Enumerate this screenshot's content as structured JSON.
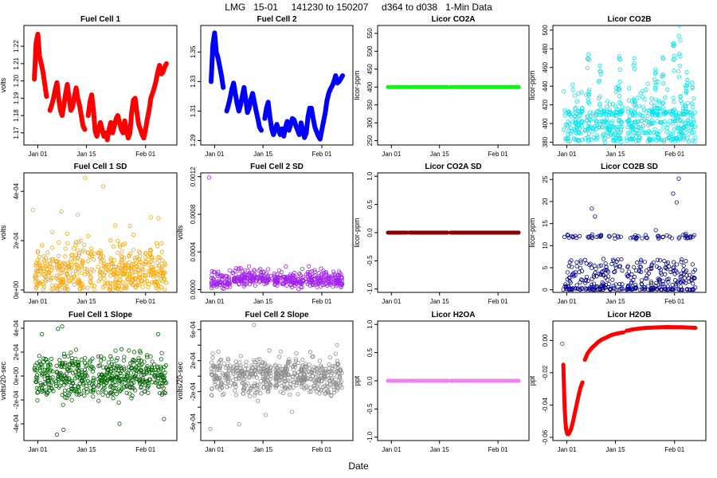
{
  "figure": {
    "title": "LMG   15-01     141230 to 150207     d364 to d038   1-Min Data",
    "xlabel": "Date"
  },
  "chart_data": [
    {
      "type": "line",
      "title": "Fuel Cell 1",
      "ylabel": "volts",
      "color": "#ff0000",
      "ylim": [
        1.163,
        1.232
      ],
      "yticks": [
        1.17,
        1.18,
        1.19,
        1.2,
        1.21,
        1.22
      ],
      "ytick_labels": [
        "1.17",
        "1.18",
        "1.19",
        "1.20",
        "1.21",
        "1.22"
      ],
      "xticks": [
        1,
        15,
        32
      ],
      "xtick_labels": [
        "Jan 01",
        "Jan 15",
        "Feb 01"
      ],
      "xlim": [
        -3,
        41
      ],
      "x": [
        0,
        0.5,
        1,
        1.5,
        2,
        2.5,
        3,
        3.5,
        4,
        4.5,
        5,
        5.5,
        6,
        6.5,
        7,
        7.5,
        8,
        8.5,
        9,
        9.5,
        10,
        10.5,
        11,
        11.5,
        12,
        12.5,
        13,
        13.5,
        14,
        14.5,
        15,
        15.5,
        16,
        16.5,
        17,
        17.5,
        18,
        18.5,
        19,
        19.5,
        20,
        20.5,
        21,
        21.5,
        22,
        22.5,
        23,
        23.5,
        24,
        24.5,
        25,
        25.5,
        26,
        26.5,
        27,
        27.5,
        28,
        28.5,
        29,
        29.5,
        30,
        30.5,
        31,
        31.5,
        32,
        32.5,
        33,
        33.5,
        34,
        34.5,
        35,
        35.5,
        36,
        36.5,
        37,
        37.5,
        38
      ],
      "y": [
        1.201,
        1.222,
        1.227,
        1.214,
        1.21,
        1.205,
        1.198,
        1.191,
        null,
        1.183,
        1.186,
        1.19,
        1.195,
        1.199,
        1.19,
        1.183,
        1.18,
        1.186,
        1.193,
        1.198,
        1.19,
        1.183,
        1.185,
        1.191,
        1.196,
        1.19,
        1.186,
        1.18,
        1.174,
        1.172,
        null,
        1.18,
        1.188,
        1.192,
        1.183,
        1.171,
        1.168,
        1.172,
        1.176,
        1.172,
        1.168,
        1.17,
        1.166,
        1.172,
        1.176,
        1.17,
        1.174,
        1.178,
        1.18,
        1.176,
        1.172,
        1.17,
        1.177,
        1.172,
        1.167,
        1.17,
        1.182,
        1.189,
        1.19,
        1.182,
        1.175,
        1.172,
        1.169,
        1.167,
        1.172,
        1.178,
        1.183,
        1.19,
        1.193,
        1.196,
        1.2,
        1.205,
        1.209,
        1.204,
        1.205,
        1.208,
        1.21
      ]
    },
    {
      "type": "line",
      "title": "Fuel Cell 2",
      "ylabel": "",
      "color": "#0000ff",
      "ylim": [
        1.287,
        1.368
      ],
      "yticks": [
        1.29,
        1.31,
        1.33,
        1.35
      ],
      "ytick_labels": [
        "1.29",
        "1.31",
        "1.33",
        "1.35"
      ],
      "xticks": [
        1,
        15,
        32
      ],
      "xtick_labels": [
        "Jan 01",
        "Jan 15",
        "Feb 01"
      ],
      "xlim": [
        -3,
        41
      ],
      "x": [
        0,
        0.5,
        1,
        1.5,
        2,
        2.5,
        3,
        3.5,
        4,
        4.5,
        5,
        5.5,
        6,
        6.5,
        7,
        7.5,
        8,
        8.5,
        9,
        9.5,
        10,
        10.5,
        11,
        11.5,
        12,
        12.5,
        13,
        13.5,
        14,
        14.5,
        15,
        15.5,
        16,
        16.5,
        17,
        17.5,
        18,
        18.5,
        19,
        19.5,
        20,
        20.5,
        21,
        21.5,
        22,
        22.5,
        23,
        23.5,
        24,
        24.5,
        25,
        25.5,
        26,
        26.5,
        27,
        27.5,
        28,
        28.5,
        29,
        29.5,
        30,
        30.5,
        31,
        31.5,
        32,
        32.5,
        33,
        33.5,
        34,
        34.5,
        35,
        35.5,
        36,
        36.5,
        37,
        37.5,
        38
      ],
      "y": [
        1.33,
        1.355,
        1.363,
        1.35,
        1.346,
        1.34,
        1.334,
        1.326,
        null,
        1.31,
        1.314,
        1.319,
        1.325,
        1.329,
        1.322,
        1.315,
        1.31,
        1.314,
        1.32,
        1.326,
        1.318,
        1.309,
        1.312,
        1.318,
        1.322,
        1.316,
        1.31,
        1.305,
        1.299,
        1.297,
        null,
        1.305,
        1.312,
        1.316,
        1.306,
        1.298,
        1.294,
        1.297,
        1.301,
        1.297,
        1.294,
        1.298,
        1.293,
        1.299,
        1.303,
        1.297,
        1.301,
        1.305,
        1.304,
        1.3,
        1.297,
        1.294,
        1.302,
        1.297,
        1.292,
        1.295,
        1.306,
        1.312,
        1.312,
        1.305,
        1.299,
        1.296,
        1.293,
        1.291,
        1.297,
        1.303,
        1.309,
        1.317,
        1.322,
        1.325,
        1.327,
        1.33,
        1.334,
        1.329,
        1.33,
        1.332,
        1.334
      ]
    },
    {
      "type": "line",
      "title": "Licor CO2A",
      "ylabel": "licor-ppm",
      "color": "#00ff00",
      "ylim": [
        238,
        572
      ],
      "yticks": [
        250,
        300,
        350,
        400,
        450,
        500,
        550
      ],
      "ytick_labels": [
        "250",
        "300",
        "350",
        "400",
        "450",
        "500",
        "550"
      ],
      "xticks": [
        1,
        15,
        32
      ],
      "xtick_labels": [
        "Jan 01",
        "Jan 15",
        "Feb 01"
      ],
      "xlim": [
        -3,
        41
      ],
      "segments": [
        [
          0,
          5.5
        ],
        [
          6.2,
          17.3
        ],
        [
          18.2,
          38
        ]
      ],
      "value": 400
    },
    {
      "type": "scatter",
      "title": "Licor CO2B",
      "ylabel": "licor-ppm",
      "color": "#00e5ee",
      "ylim": [
        377,
        505
      ],
      "yticks": [
        380,
        400,
        420,
        440,
        460,
        480,
        500
      ],
      "ytick_labels": [
        "380",
        "400",
        "420",
        "440",
        "460",
        "480",
        "500"
      ],
      "xticks": [
        1,
        15,
        32
      ],
      "xtick_labels": [
        "Jan 01",
        "Jan 15",
        "Feb 01"
      ],
      "xlim": [
        -3,
        41
      ],
      "segments": [
        [
          0,
          5.5
        ],
        [
          6.2,
          17.3
        ],
        [
          18.2,
          38
        ]
      ],
      "bands": [
        383,
        390,
        396,
        402,
        410
      ],
      "spikes": [
        [
          7.2,
          474
        ],
        [
          10.5,
          462
        ],
        [
          16.1,
          472
        ],
        [
          20.4,
          470
        ],
        [
          31.8,
          486
        ],
        [
          33.4,
          505
        ],
        [
          28.6,
          471
        ],
        [
          26.5,
          458
        ],
        [
          35.5,
          455
        ]
      ]
    },
    {
      "type": "scatter",
      "title": "Fuel Cell 1 SD",
      "ylabel": "volts",
      "color": "#ffa500",
      "ylim": [
        -1e-05,
        0.000475
      ],
      "yticks": [
        0,
        0.0002,
        0.0004
      ],
      "ytick_labels": [
        "0e+00",
        "2e-04",
        "4e-04"
      ],
      "xticks": [
        1,
        15,
        32
      ],
      "xtick_labels": [
        "Jan 01",
        "Jan 15",
        "Feb 01"
      ],
      "xlim": [
        -3,
        41
      ],
      "segments": [
        [
          0,
          5.5
        ],
        [
          6.2,
          17.3
        ],
        [
          18.2,
          38
        ]
      ],
      "outliers": [
        [
          -0.4,
          0.000325
        ],
        [
          5.2,
          0.000235
        ],
        [
          7.8,
          0.000318
        ],
        [
          12.5,
          0.000305
        ],
        [
          19.8,
          0.00042
        ],
        [
          23.3,
          0.000262
        ],
        [
          27.5,
          0.00026
        ],
        [
          33.5,
          0.000295
        ],
        [
          35.7,
          0.000291
        ],
        [
          14.6,
          0.000455
        ]
      ]
    },
    {
      "type": "scatter",
      "title": "Fuel Cell 2 SD",
      "ylabel": "volts",
      "color": "#a020f0",
      "ylim": [
        -3e-05,
        0.00124
      ],
      "yticks": [
        0,
        0.0004,
        0.0008,
        0.0012
      ],
      "ytick_labels": [
        "0.0000",
        "0.0004",
        "0.0008",
        "0.0012"
      ],
      "xticks": [
        1,
        15,
        32
      ],
      "xtick_labels": [
        "Jan 01",
        "Jan 15",
        "Feb 01"
      ],
      "xlim": [
        -3,
        41
      ],
      "segments": [
        [
          0,
          5.5
        ],
        [
          6.2,
          17.3
        ],
        [
          18.2,
          38
        ]
      ],
      "outliers": [
        [
          -0.6,
          0.00119
        ],
        [
          9.3,
          0.00016
        ],
        [
          13.1,
          0.00013
        ],
        [
          31.2,
          0.00014
        ],
        [
          36.5,
          0.00015
        ]
      ]
    },
    {
      "type": "line",
      "title": "Licor CO2A SD",
      "ylabel": "licor-ppm",
      "color": "#8b0000",
      "ylim": [
        -1.06,
        1.06
      ],
      "yticks": [
        -1,
        -0.5,
        0,
        0.5,
        1
      ],
      "ytick_labels": [
        "-1.0",
        "-0.5",
        "0.0",
        "0.5",
        "1.0"
      ],
      "xticks": [
        1,
        15,
        32
      ],
      "xtick_labels": [
        "Jan 01",
        "Jan 15",
        "Feb 01"
      ],
      "xlim": [
        -3,
        41
      ],
      "segments": [
        [
          0,
          5.5
        ],
        [
          6.2,
          17.3
        ],
        [
          18.2,
          38
        ]
      ],
      "value": 0
    },
    {
      "type": "scatter",
      "title": "Licor CO2B SD",
      "ylabel": "licor-ppm",
      "color": "#00008b",
      "ylim": [
        -0.6,
        26.5
      ],
      "yticks": [
        0,
        5,
        10,
        15,
        20,
        25
      ],
      "ytick_labels": [
        "0",
        "5",
        "10",
        "15",
        "20",
        "25"
      ],
      "xticks": [
        1,
        15,
        32
      ],
      "xtick_labels": [
        "Jan 01",
        "Jan 15",
        "Feb 01"
      ],
      "xlim": [
        -3,
        41
      ],
      "segments": [
        [
          0,
          5.5
        ],
        [
          6.2,
          17.3
        ],
        [
          18.2,
          38
        ]
      ],
      "band": 12,
      "spikes": [
        [
          8.2,
          18.4
        ],
        [
          9.1,
          16.6
        ],
        [
          26.6,
          13.5
        ],
        [
          31.6,
          21.8
        ],
        [
          32.6,
          19.8
        ],
        [
          33.2,
          25.2
        ]
      ]
    },
    {
      "type": "scatter",
      "title": "Fuel Cell 1 Slope",
      "ylabel": "volts/20-sec",
      "color": "#006400",
      "ylim": [
        -0.00054,
        0.00046
      ],
      "yticks": [
        -0.0004,
        -0.0002,
        0,
        0.0002,
        0.0004
      ],
      "ytick_labels": [
        "-4e-04",
        "-2e-04",
        "0e+00",
        "2e-04",
        "4e-04"
      ],
      "xticks": [
        1,
        15,
        32
      ],
      "xtick_labels": [
        "Jan 01",
        "Jan 15",
        "Feb 01"
      ],
      "xlim": [
        -3,
        41
      ],
      "segments": [
        [
          0,
          5.5
        ],
        [
          6.2,
          17.3
        ],
        [
          18.2,
          38
        ]
      ],
      "spread": 0.00018,
      "outliers": [
        [
          2.2,
          0.00035
        ],
        [
          6.8,
          0.000395
        ],
        [
          8.0,
          0.000415
        ],
        [
          6.5,
          -0.00049
        ],
        [
          8.4,
          -0.00045
        ],
        [
          24.5,
          -0.0004
        ],
        [
          35.6,
          0.00035
        ],
        [
          37.3,
          -0.00036
        ]
      ]
    },
    {
      "type": "scatter",
      "title": "Fuel Cell 2 Slope",
      "ylabel": "volts/20-sec",
      "color": "#8c8c8c",
      "ylim": [
        -0.00083,
        0.00071
      ],
      "yticks": [
        -0.0006,
        -0.0004,
        -0.0002,
        0,
        0.0002,
        0.0004,
        0.0006
      ],
      "ytick_labels": [
        "-6e-04",
        "",
        "-2e-04",
        "",
        "2e-04",
        "",
        "6e-04"
      ],
      "xticks": [
        1,
        15,
        32
      ],
      "xtick_labels": [
        "Jan 01",
        "Jan 15",
        "Feb 01"
      ],
      "xlim": [
        -3,
        41
      ],
      "segments": [
        [
          0,
          5.5
        ],
        [
          6.2,
          17.3
        ],
        [
          18.2,
          38
        ]
      ],
      "spread": 0.00023,
      "outliers": [
        [
          12.4,
          0.00066
        ],
        [
          -0.2,
          -0.00068
        ],
        [
          8.1,
          -0.00062
        ],
        [
          15.8,
          -0.0005
        ],
        [
          36.4,
          0.0004
        ],
        [
          23.4,
          -0.00046
        ]
      ]
    },
    {
      "type": "line",
      "title": "Licor H2OA",
      "ylabel": "ppt",
      "color": "#ee82ee",
      "ylim": [
        -1.06,
        1.06
      ],
      "yticks": [
        -1,
        -0.5,
        0,
        0.5,
        1
      ],
      "ytick_labels": [
        "-1.0",
        "-0.5",
        "0.0",
        "0.5",
        "1.0"
      ],
      "xticks": [
        1,
        15,
        32
      ],
      "xtick_labels": [
        "Jan 01",
        "Jan 15",
        "Feb 01"
      ],
      "xlim": [
        -3,
        41
      ],
      "segments": [
        [
          0,
          5.5
        ],
        [
          6.2,
          17.3
        ],
        [
          18.2,
          38
        ]
      ],
      "value": 0
    },
    {
      "type": "line",
      "title": "Licor H2OB",
      "ylabel": "ppt",
      "color": "#ff0000",
      "ylim": [
        -0.062,
        0.012
      ],
      "yticks": [
        -0.06,
        -0.04,
        -0.02,
        0
      ],
      "ytick_labels": [
        "-0.06",
        "-0.04",
        "-0.02",
        "0.00"
      ],
      "xticks": [
        1,
        15,
        32
      ],
      "xtick_labels": [
        "Jan 01",
        "Jan 15",
        "Feb 01"
      ],
      "xlim": [
        -3,
        41
      ],
      "x": [
        0,
        0.2,
        0.4,
        0.6,
        0.8,
        1.0,
        1.2,
        1.5,
        1.8,
        2.2,
        2.6,
        3.0,
        3.4,
        3.8,
        4.2,
        4.6,
        5.0,
        5.5,
        null,
        6.2,
        7.0,
        8.0,
        9.0,
        10.0,
        11.0,
        12.0,
        13.0,
        14.0,
        15.0,
        16.0,
        17.3,
        null,
        18.2,
        20.0,
        22.0,
        24.0,
        26.0,
        28.0,
        30.0,
        32.0,
        34.0,
        36.0,
        38.0
      ],
      "y": [
        -0.015,
        -0.03,
        -0.042,
        -0.05,
        -0.055,
        -0.057,
        -0.058,
        -0.058,
        -0.057,
        -0.055,
        -0.052,
        -0.048,
        -0.044,
        -0.04,
        -0.036,
        -0.032,
        -0.029,
        -0.026,
        null,
        -0.012,
        -0.008,
        -0.005,
        -0.003,
        -0.001,
        0.0005,
        0.0015,
        0.0025,
        0.0035,
        0.004,
        0.0045,
        0.005,
        null,
        0.006,
        0.0068,
        0.0074,
        0.0078,
        0.008,
        0.0082,
        0.0083,
        0.0082,
        0.0082,
        0.008,
        0.0078
      ],
      "outliers": [
        [
          -0.3,
          -0.002
        ]
      ]
    }
  ]
}
